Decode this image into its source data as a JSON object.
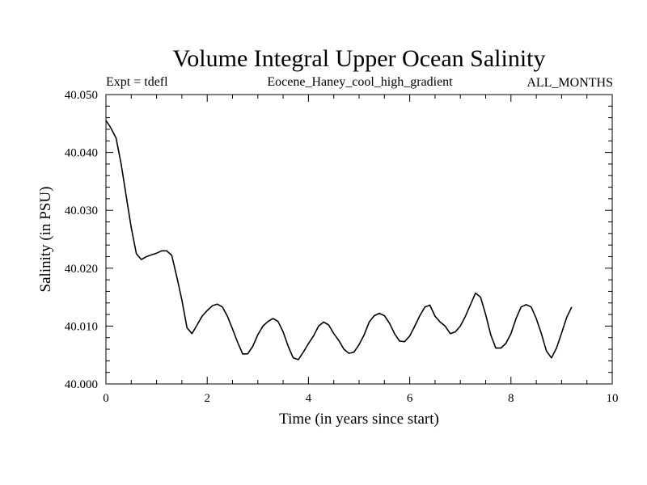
{
  "chart_data": {
    "type": "line",
    "title": "Volume Integral Upper Ocean Salinity",
    "subtitle_left": "Expt = tdefl",
    "subtitle_center": "Eocene_Haney_cool_high_gradient",
    "subtitle_right": "ALL_MONTHS",
    "xlabel": "Time (in years since start)",
    "ylabel": "Salinity (in PSU)",
    "xlim": [
      0,
      10
    ],
    "ylim": [
      40.0,
      40.05
    ],
    "x_ticks": [
      0,
      2,
      4,
      6,
      8,
      10
    ],
    "x_tick_labels": [
      "0",
      "2",
      "4",
      "6",
      "8",
      "10"
    ],
    "y_ticks": [
      40.0,
      40.01,
      40.02,
      40.03,
      40.04,
      40.05
    ],
    "y_tick_labels": [
      "40.000",
      "40.010",
      "40.020",
      "40.030",
      "40.040",
      "40.050"
    ],
    "grid": false,
    "line_color": "#000000",
    "series": [
      {
        "x": [
          0.0,
          0.08,
          0.2,
          0.3,
          0.4,
          0.5,
          0.6,
          0.7,
          0.8,
          0.9,
          1.0,
          1.1,
          1.2,
          1.3,
          1.4,
          1.5,
          1.6,
          1.7,
          1.8,
          1.9,
          2.0,
          2.1,
          2.2,
          2.3,
          2.4,
          2.5,
          2.6,
          2.7,
          2.8,
          2.9,
          3.0,
          3.1,
          3.2,
          3.3,
          3.4,
          3.5,
          3.6,
          3.7,
          3.8,
          3.9,
          4.0,
          4.1,
          4.2,
          4.3,
          4.4,
          4.5,
          4.6,
          4.7,
          4.8,
          4.9,
          5.0,
          5.1,
          5.2,
          5.3,
          5.4,
          5.5,
          5.6,
          5.7,
          5.8,
          5.9,
          6.0,
          6.1,
          6.2,
          6.3,
          6.4,
          6.5,
          6.6,
          6.7,
          6.8,
          6.9,
          7.0,
          7.1,
          7.2,
          7.3,
          7.4,
          7.5,
          7.6,
          7.7,
          7.8,
          7.9,
          8.0,
          8.1,
          8.2,
          8.3,
          8.4,
          8.5,
          8.6,
          8.7,
          8.8,
          8.9,
          9.0,
          9.1,
          9.2
        ],
        "values": [
          40.0455,
          40.0445,
          40.0425,
          40.038,
          40.0325,
          40.027,
          40.0225,
          40.0215,
          40.022,
          40.0223,
          40.0226,
          40.023,
          40.023,
          40.0222,
          40.0185,
          40.0145,
          40.0097,
          40.0087,
          40.0102,
          40.0117,
          40.0127,
          40.0135,
          40.0138,
          40.0133,
          40.0117,
          40.0095,
          40.0072,
          40.0052,
          40.0052,
          40.0065,
          40.0085,
          40.01,
          40.0108,
          40.0113,
          40.0108,
          40.009,
          40.0065,
          40.0045,
          40.0042,
          40.0055,
          40.007,
          40.0083,
          40.01,
          40.0107,
          40.0102,
          40.0087,
          40.0075,
          40.006,
          40.0053,
          40.0055,
          40.0068,
          40.0085,
          40.0107,
          40.0118,
          40.0122,
          40.0118,
          40.0105,
          40.0087,
          40.0074,
          40.0073,
          40.0083,
          40.01,
          40.0118,
          40.0133,
          40.0136,
          40.0117,
          40.0107,
          40.01,
          40.0087,
          40.009,
          40.01,
          40.0117,
          40.0137,
          40.0157,
          40.015,
          40.012,
          40.0085,
          40.0062,
          40.0062,
          40.007,
          40.0087,
          40.0113,
          40.0133,
          40.0137,
          40.0133,
          40.0113,
          40.0087,
          40.0057,
          40.0045,
          40.0062,
          40.0088,
          40.0115,
          40.0133
        ]
      }
    ]
  }
}
